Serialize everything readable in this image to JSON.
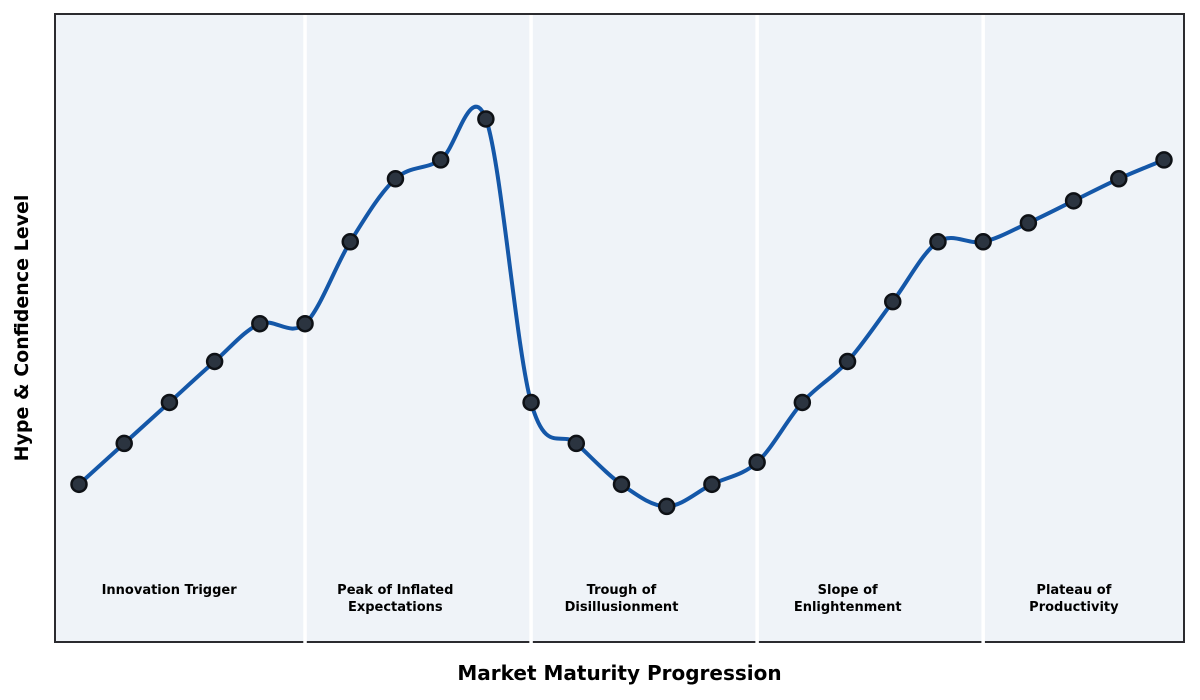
{
  "chart_data": {
    "type": "line",
    "title": "",
    "xlabel": "Market Maturity Progression",
    "ylabel": "Hype & Confidence Level",
    "x": [
      1,
      2,
      3,
      4,
      5,
      6,
      7,
      8,
      9,
      10,
      11,
      12,
      13,
      14,
      15,
      16,
      17,
      18,
      19,
      20,
      21,
      22,
      23,
      24,
      25
    ],
    "values": [
      25.5,
      32,
      38.5,
      45,
      51,
      51,
      64,
      74,
      77,
      83.5,
      38.5,
      32,
      25.5,
      22,
      25.5,
      29,
      38.5,
      45,
      54.5,
      64,
      64,
      67,
      70.5,
      74,
      77
    ],
    "ylim": [
      0,
      100
    ],
    "grid": false,
    "legend": "none",
    "smooth": true,
    "phase_divider_x": [
      6,
      11,
      16,
      21
    ],
    "phases": [
      {
        "label": "Innovation Trigger",
        "lines": [
          "Innovation Trigger"
        ]
      },
      {
        "label": "Peak of Inflated Expectations",
        "lines": [
          "Peak of Inflated",
          "Expectations"
        ]
      },
      {
        "label": "Trough of Disillusionment",
        "lines": [
          "Trough of",
          "Disillusionment"
        ]
      },
      {
        "label": "Slope of Enlightenment",
        "lines": [
          "Slope of",
          "Enlightenment"
        ]
      },
      {
        "label": "Plateau of Productivity",
        "lines": [
          "Plateau of",
          "Productivity"
        ]
      }
    ],
    "colors": {
      "line": "#1457a8",
      "marker_fill": "#2b3440",
      "marker_edge": "#0e1116",
      "plot_background": "#eff3f8",
      "divider": "#ffffff",
      "frame_border": "#2b2b2f",
      "text": "#000000",
      "page_background": "#ffffff"
    }
  }
}
